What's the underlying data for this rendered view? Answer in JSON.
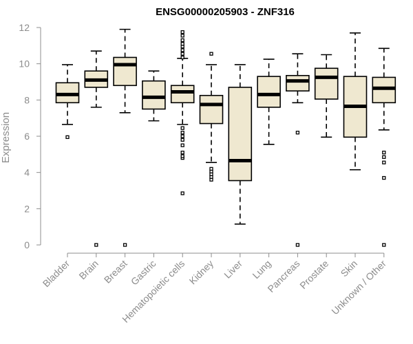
{
  "chart_data": {
    "type": "box",
    "title": "ENSG00000205903 - ZNF316",
    "xlabel": "",
    "ylabel": "Expression",
    "ylim": [
      0,
      12
    ],
    "yticks": [
      0,
      2,
      4,
      6,
      8,
      10,
      12
    ],
    "grid": false,
    "legend": "none",
    "colors": {
      "box_fill": "#efe8d0",
      "box_stroke": "#000000",
      "axis": "#8c8c8c",
      "tick_text": "#8c8c8c"
    },
    "categories": [
      "Bladder",
      "Brain",
      "Breast",
      "Gastric",
      "Hematopoietic cells",
      "Kidney",
      "Liver",
      "Lung",
      "Pancreas",
      "Prostate",
      "Skin",
      "Unknown / Other"
    ],
    "boxes": [
      {
        "category": "Bladder",
        "whisker_low": 6.65,
        "q1": 7.85,
        "median": 8.3,
        "q3": 8.95,
        "whisker_high": 9.95,
        "outliers": [
          5.95
        ]
      },
      {
        "category": "Brain",
        "whisker_low": 7.6,
        "q1": 8.7,
        "median": 9.1,
        "q3": 9.6,
        "whisker_high": 10.7,
        "outliers": [
          0
        ]
      },
      {
        "category": "Breast",
        "whisker_low": 7.3,
        "q1": 8.8,
        "median": 9.95,
        "q3": 10.35,
        "whisker_high": 11.9,
        "outliers": [
          0
        ]
      },
      {
        "category": "Gastric",
        "whisker_low": 6.85,
        "q1": 7.5,
        "median": 8.15,
        "q3": 9.05,
        "whisker_high": 9.6,
        "outliers": []
      },
      {
        "category": "Hematopoietic cells",
        "whisker_low": 6.65,
        "q1": 7.85,
        "median": 8.45,
        "q3": 8.8,
        "whisker_high": 10.3,
        "outliers": [
          2.85,
          4.8,
          4.9,
          5.1,
          5.5,
          5.8,
          6.0,
          6.2,
          6.45,
          10.35,
          10.55,
          10.75,
          10.95,
          11.1,
          11.3,
          11.55,
          11.75
        ]
      },
      {
        "category": "Kidney",
        "whisker_low": 4.55,
        "q1": 6.7,
        "median": 7.75,
        "q3": 8.25,
        "whisker_high": 9.95,
        "outliers": [
          3.6,
          3.75,
          3.9,
          4.05,
          4.2,
          10.55
        ]
      },
      {
        "category": "Liver",
        "whisker_low": 1.15,
        "q1": 3.55,
        "median": 4.65,
        "q3": 8.7,
        "whisker_high": 9.95,
        "outliers": []
      },
      {
        "category": "Lung",
        "whisker_low": 5.55,
        "q1": 7.6,
        "median": 8.3,
        "q3": 9.3,
        "whisker_high": 10.25,
        "outliers": []
      },
      {
        "category": "Pancreas",
        "whisker_low": 7.85,
        "q1": 8.5,
        "median": 9.05,
        "q3": 9.35,
        "whisker_high": 10.55,
        "outliers": [
          6.2,
          0
        ]
      },
      {
        "category": "Prostate",
        "whisker_low": 5.95,
        "q1": 8.05,
        "median": 9.25,
        "q3": 9.75,
        "whisker_high": 10.5,
        "outliers": []
      },
      {
        "category": "Skin",
        "whisker_low": 4.15,
        "q1": 5.95,
        "median": 7.65,
        "q3": 9.3,
        "whisker_high": 11.7,
        "outliers": []
      },
      {
        "category": "Unknown / Other",
        "whisker_low": 6.35,
        "q1": 7.85,
        "median": 8.65,
        "q3": 9.25,
        "whisker_high": 10.85,
        "outliers": [
          5.1,
          4.85,
          4.55,
          3.7,
          0
        ]
      }
    ]
  }
}
